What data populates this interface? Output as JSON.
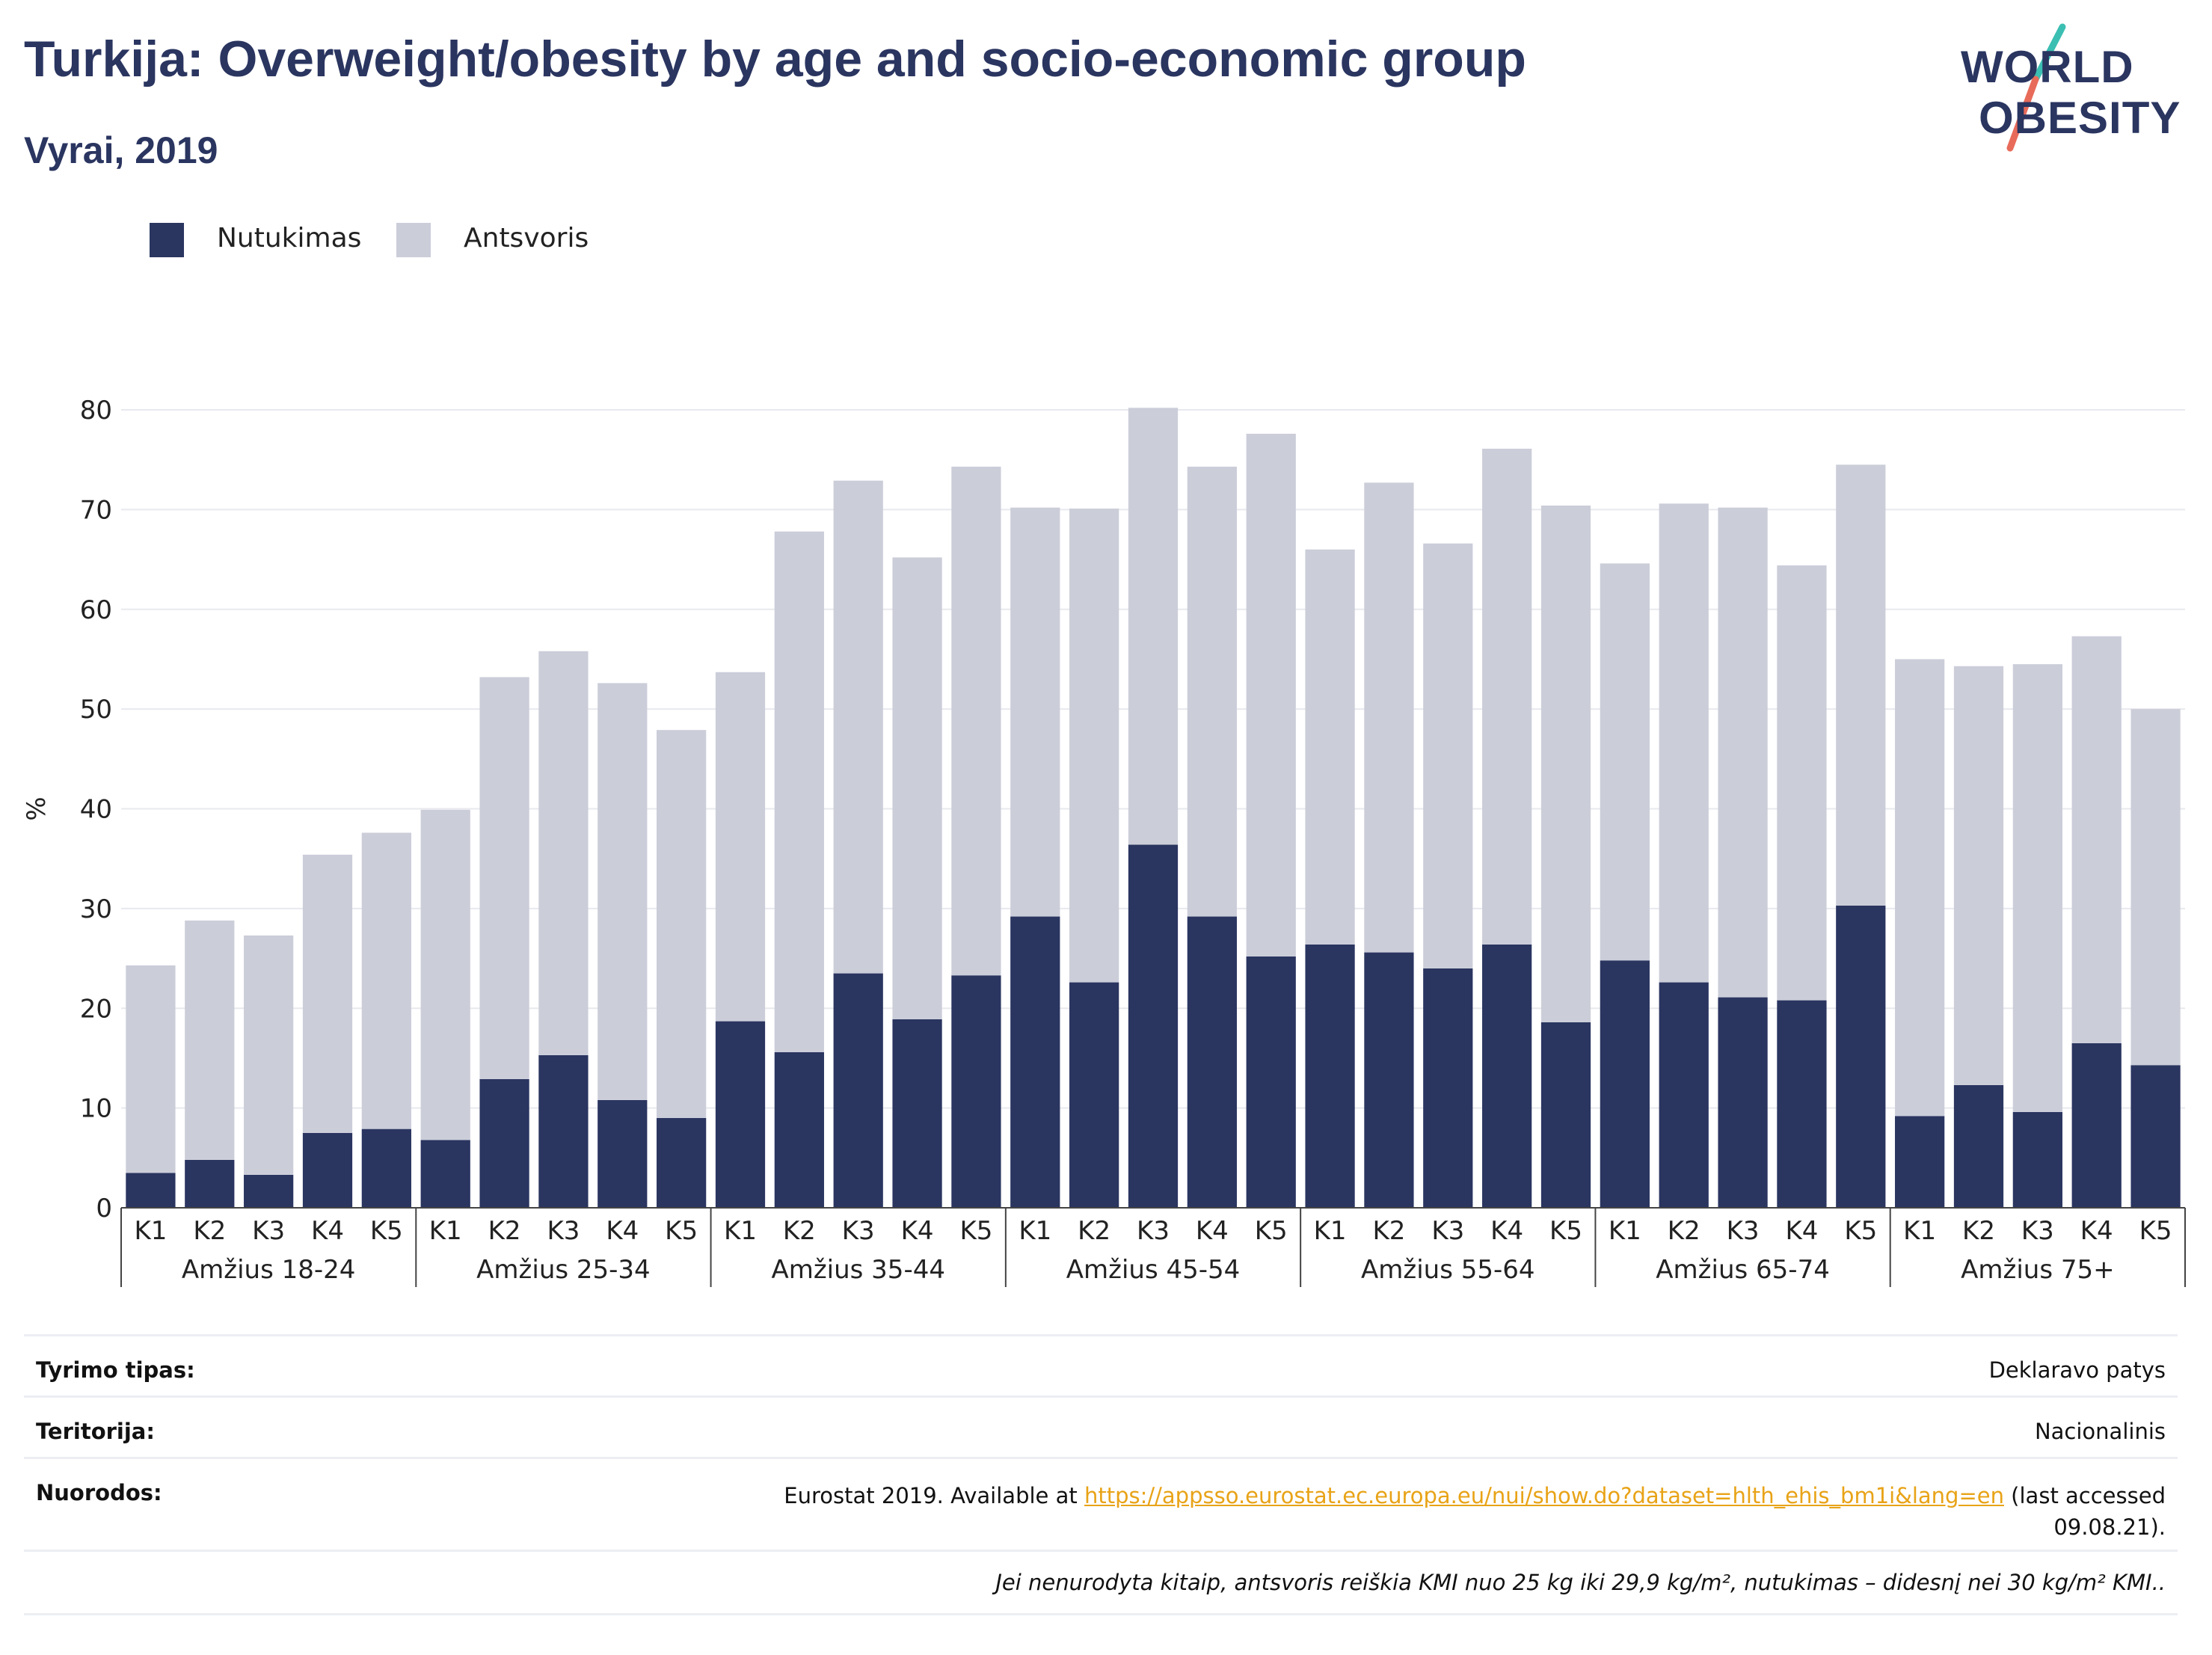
{
  "header": {
    "title": "Turkija: Overweight/obesity by age and socio-economic group",
    "subtitle": "Vyrai, 2019"
  },
  "logo": {
    "line1": "WORLD",
    "line2": "OBESITY",
    "colors": {
      "text": "#2a3560",
      "slash_top": "#3bbfb2",
      "slash_bottom": "#e86b5a"
    }
  },
  "colors": {
    "obesity": "#2a3560",
    "overweight": "#cbcdd9",
    "grid": "#e8e9ee",
    "link": "#e8a317"
  },
  "chart_data": {
    "type": "bar",
    "stacked": true,
    "ylabel": "%",
    "ylim": [
      0,
      80
    ],
    "yticks": [
      0,
      10,
      20,
      30,
      40,
      50,
      60,
      70,
      80
    ],
    "grid": true,
    "legend": {
      "placement": "top-left"
    },
    "categories": [
      "K1",
      "K2",
      "K3",
      "K4",
      "K5"
    ],
    "groups": [
      "Amžius 18-24",
      "Amžius 25-34",
      "Amžius 35-44",
      "Amžius 45-54",
      "Amžius 55-64",
      "Amžius 65-74",
      "Amžius 75+"
    ],
    "series": [
      {
        "name": "Nutukimas",
        "color": "#2a3560",
        "values": [
          [
            3.5,
            4.8,
            3.3,
            7.5,
            7.9
          ],
          [
            6.8,
            12.9,
            15.3,
            10.8,
            9.0
          ],
          [
            18.7,
            15.6,
            23.5,
            18.9,
            23.3
          ],
          [
            29.2,
            22.6,
            36.4,
            29.2,
            25.2
          ],
          [
            26.4,
            25.6,
            24.0,
            26.4,
            18.6
          ],
          [
            24.8,
            22.6,
            21.1,
            20.8,
            30.3
          ],
          [
            9.2,
            12.3,
            9.6,
            16.5,
            14.3
          ]
        ]
      },
      {
        "name": "Antsvoris",
        "color": "#cbcdd9",
        "values": [
          [
            20.8,
            24.0,
            24.0,
            27.9,
            29.7
          ],
          [
            33.1,
            40.3,
            40.5,
            41.8,
            38.9
          ],
          [
            35.0,
            52.2,
            49.4,
            46.3,
            51.0
          ],
          [
            41.0,
            47.5,
            43.8,
            45.1,
            52.4
          ],
          [
            39.6,
            47.1,
            42.6,
            49.7,
            51.8
          ],
          [
            39.8,
            48.0,
            49.1,
            43.6,
            44.2
          ],
          [
            45.8,
            42.0,
            44.9,
            40.8,
            35.7
          ]
        ]
      }
    ]
  },
  "info": {
    "rows": [
      {
        "label": "Tyrimo tipas:",
        "value": "Deklaravo patys"
      },
      {
        "label": "Teritorija:",
        "value": "Nacionalinis"
      }
    ],
    "references": {
      "label": "Nuorodos:",
      "prefix": "Eurostat 2019. Available at ",
      "link": "https://appsso.eurostat.ec.europa.eu/nui/show.do?dataset=hlth_ehis_bm1i&lang=en",
      "suffix": " (last accessed",
      "line2": "09.08.21)."
    },
    "note": "Jei nenurodyta kitaip, antsvoris reiškia KMI nuo 25 kg iki 29,9 kg/m², nutukimas – didesnį nei 30 kg/m² KMI.."
  }
}
